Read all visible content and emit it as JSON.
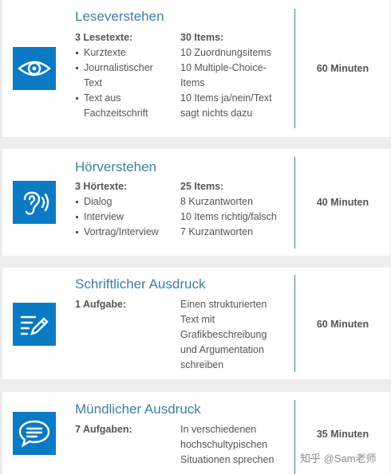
{
  "sections": [
    {
      "title": "Leseverstehen",
      "icon": "eye-icon",
      "left_head": "3 Lesetexte:",
      "left_items": [
        "Kurztexte",
        "Journalistischer Text",
        "Text aus Fachzeitschrift"
      ],
      "right_head": "30 Items:",
      "right_items": [
        "10 Zuordnungsitems",
        "10 Multiple-Choice-Items",
        "10 Items ja/nein/Text sagt nichts dazu"
      ],
      "duration": "60 Minuten"
    },
    {
      "title": "Hörverstehen",
      "icon": "ear-icon",
      "left_head": "3 Hörtexte:",
      "left_items": [
        "Dialog",
        "Interview",
        "Vortrag/Interview"
      ],
      "right_head": "25 Items:",
      "right_items": [
        "8 Kurzantworten",
        "10 Items richtig/falsch",
        "7 Kurzantworten"
      ],
      "duration": "40 Minuten"
    },
    {
      "title": "Schriftlicher Ausdruck",
      "icon": "writing-icon",
      "left_head": "1 Aufgabe:",
      "right_text": "Einen strukturierten Text mit Grafikbeschreibung und Argumentation schreiben",
      "duration": "60 Minuten"
    },
    {
      "title": "Mündlicher Ausdruck",
      "icon": "speech-bubble-icon",
      "left_head": "7 Aufgaben:",
      "right_text": "In verschiedenen hochschultypischen Situationen sprechen",
      "duration": "35 Minuten"
    }
  ],
  "watermark": "知乎 @Sam老师",
  "colors": {
    "accent": "#0a7ac4",
    "title": "#3d7fa6",
    "background": "#ededed",
    "card": "#ffffff"
  }
}
